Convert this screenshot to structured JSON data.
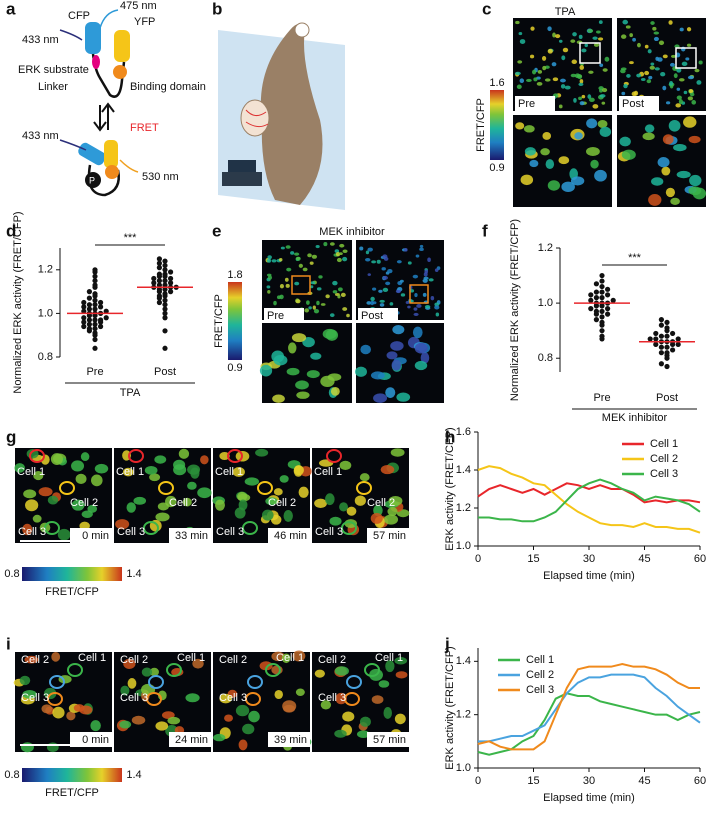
{
  "panel_letters": [
    "a",
    "b",
    "c",
    "d",
    "e",
    "f",
    "g",
    "h",
    "i",
    "j"
  ],
  "diagram": {
    "cfp": "CFP",
    "yfp": "YFP",
    "ex1": "433 nm",
    "em1": "475 nm",
    "substrate": "ERK substrate",
    "linker": "Linker",
    "binding": "Binding domain",
    "ex2": "433 nm",
    "fret": "FRET",
    "em2": "530 nm",
    "phospho": "P"
  },
  "panel_c": {
    "title": "TPA",
    "pre": "Pre",
    "post": "Post",
    "scale_max": "1.6",
    "scale_min": "0.9",
    "scale_label": "FRET/CFP"
  },
  "panel_e": {
    "title": "MEK inhibitor",
    "pre": "Pre",
    "post": "Post",
    "scale_max": "1.8",
    "scale_min": "0.9",
    "scale_label": "FRET/CFP"
  },
  "panel_g": {
    "cells": [
      "Cell 1",
      "Cell 2",
      "Cell 3"
    ],
    "times": [
      "0 min",
      "33 min",
      "46 min",
      "57 min"
    ],
    "scale_min": "0.8",
    "scale_max": "1.4",
    "scale_label": "FRET/CFP"
  },
  "panel_i": {
    "cells": [
      "Cell 1",
      "Cell 2",
      "Cell 3"
    ],
    "times": [
      "0 min",
      "24 min",
      "39 min",
      "57 min"
    ],
    "scale_min": "0.8",
    "scale_max": "1.4",
    "scale_label": "FRET/CFP"
  },
  "chart_data": [
    {
      "type": "strip",
      "ylabel": "Normalized ERK activity (FRET/CFP)",
      "xlabel": "TPA",
      "significance": "***",
      "categories": [
        "Pre",
        "Post"
      ],
      "color": "#111111",
      "mean_color": "#e8262b",
      "means": [
        1.0,
        1.12
      ],
      "values": [
        [
          0.84,
          0.88,
          0.9,
          0.91,
          0.92,
          0.93,
          0.93,
          0.94,
          0.94,
          0.95,
          0.95,
          0.96,
          0.96,
          0.97,
          0.97,
          0.97,
          0.98,
          0.98,
          0.99,
          0.99,
          1.0,
          1.0,
          1.0,
          1.01,
          1.01,
          1.02,
          1.02,
          1.03,
          1.03,
          1.04,
          1.04,
          1.05,
          1.05,
          1.06,
          1.07,
          1.08,
          1.09,
          1.1,
          1.12,
          1.13,
          1.15,
          1.17,
          1.19,
          1.2
        ],
        [
          0.84,
          0.92,
          0.98,
          1.0,
          1.02,
          1.04,
          1.05,
          1.06,
          1.07,
          1.08,
          1.08,
          1.09,
          1.1,
          1.1,
          1.11,
          1.11,
          1.12,
          1.12,
          1.12,
          1.13,
          1.13,
          1.14,
          1.14,
          1.15,
          1.15,
          1.16,
          1.16,
          1.17,
          1.17,
          1.18,
          1.18,
          1.19,
          1.2,
          1.21,
          1.22,
          1.23,
          1.24,
          1.25
        ]
      ],
      "ylim": [
        0.8,
        1.3
      ],
      "yticks": [
        {
          "value": 0.8,
          "label": "0.8"
        },
        {
          "value": 1.0,
          "label": "1.0"
        },
        {
          "value": 1.2,
          "label": "1.2"
        }
      ]
    },
    {
      "type": "strip",
      "ylabel": "Normalized ERK activity (FRET/CFP)",
      "xlabel": "MEK inhibitor",
      "significance": "***",
      "categories": [
        "Pre",
        "Post"
      ],
      "color": "#111111",
      "mean_color": "#e8262b",
      "means": [
        1.0,
        0.86
      ],
      "values": [
        [
          0.87,
          0.88,
          0.9,
          0.92,
          0.93,
          0.94,
          0.95,
          0.96,
          0.96,
          0.97,
          0.97,
          0.98,
          0.98,
          0.99,
          0.99,
          1.0,
          1.0,
          1.0,
          1.01,
          1.01,
          1.02,
          1.02,
          1.03,
          1.03,
          1.04,
          1.04,
          1.05,
          1.06,
          1.07,
          1.08,
          1.1
        ],
        [
          0.77,
          0.78,
          0.8,
          0.81,
          0.82,
          0.82,
          0.83,
          0.84,
          0.84,
          0.85,
          0.85,
          0.85,
          0.86,
          0.86,
          0.86,
          0.87,
          0.87,
          0.87,
          0.88,
          0.88,
          0.89,
          0.89,
          0.9,
          0.91,
          0.92,
          0.93,
          0.94
        ]
      ],
      "ylim": [
        0.75,
        1.2
      ],
      "yticks": [
        {
          "value": 0.8,
          "label": "0.8"
        },
        {
          "value": 1.0,
          "label": "1.0"
        },
        {
          "value": 1.2,
          "label": "1.2"
        }
      ]
    },
    {
      "type": "line",
      "ylabel": "ERK activity (FRET/CFP)",
      "xlabel": "Elapsed time (min)",
      "x": [
        0,
        3,
        6,
        9,
        12,
        15,
        18,
        21,
        24,
        27,
        30,
        33,
        36,
        39,
        42,
        45,
        48,
        51,
        54,
        57,
        60
      ],
      "series": [
        {
          "name": "Cell 1",
          "color": "#e8262b",
          "values": [
            1.26,
            1.3,
            1.32,
            1.3,
            1.28,
            1.3,
            1.27,
            1.3,
            1.33,
            1.32,
            1.3,
            1.32,
            1.3,
            1.3,
            1.27,
            1.23,
            1.24,
            1.23,
            1.24,
            1.24,
            1.23
          ]
        },
        {
          "name": "Cell 2",
          "color": "#f5c518",
          "values": [
            1.4,
            1.42,
            1.41,
            1.38,
            1.36,
            1.33,
            1.32,
            1.27,
            1.22,
            1.18,
            1.15,
            1.12,
            1.11,
            1.11,
            1.1,
            1.12,
            1.1,
            1.1,
            1.09,
            1.09,
            1.07
          ]
        },
        {
          "name": "Cell 3",
          "color": "#3bb54a",
          "values": [
            1.15,
            1.15,
            1.14,
            1.14,
            1.13,
            1.13,
            1.15,
            1.18,
            1.24,
            1.3,
            1.33,
            1.35,
            1.33,
            1.3,
            1.28,
            1.24,
            1.26,
            1.25,
            1.24,
            1.22,
            1.18
          ]
        }
      ],
      "xlim": [
        0,
        60
      ],
      "xticks": [
        0,
        15,
        30,
        45,
        60
      ],
      "ylim": [
        1.0,
        1.6
      ],
      "yticks": [
        {
          "value": 1.0,
          "label": "1.0"
        },
        {
          "value": 1.2,
          "label": "1.2"
        },
        {
          "value": 1.4,
          "label": "1.4"
        },
        {
          "value": 1.6,
          "label": "1.6"
        }
      ],
      "legend": "upper right"
    },
    {
      "type": "line",
      "ylabel": "ERK activity (FRET/CFP)",
      "xlabel": "Elapsed time (min)",
      "x": [
        0,
        3,
        6,
        9,
        12,
        15,
        18,
        21,
        24,
        27,
        30,
        33,
        36,
        39,
        42,
        45,
        48,
        51,
        54,
        57,
        60
      ],
      "series": [
        {
          "name": "Cell 1",
          "color": "#3bb54a",
          "values": [
            1.06,
            1.05,
            1.06,
            1.07,
            1.1,
            1.12,
            1.18,
            1.26,
            1.28,
            1.27,
            1.27,
            1.25,
            1.24,
            1.23,
            1.22,
            1.21,
            1.2,
            1.2,
            1.18,
            1.2,
            1.21
          ]
        },
        {
          "name": "Cell 2",
          "color": "#4aa3df",
          "values": [
            1.1,
            1.1,
            1.11,
            1.12,
            1.12,
            1.14,
            1.16,
            1.22,
            1.28,
            1.32,
            1.34,
            1.34,
            1.35,
            1.35,
            1.35,
            1.34,
            1.3,
            1.27,
            1.23,
            1.2,
            1.17
          ]
        },
        {
          "name": "Cell 3",
          "color": "#f08a1c",
          "values": [
            1.09,
            1.1,
            1.08,
            1.07,
            1.07,
            1.07,
            1.1,
            1.2,
            1.3,
            1.37,
            1.38,
            1.38,
            1.38,
            1.39,
            1.38,
            1.38,
            1.37,
            1.35,
            1.32,
            1.3,
            1.3
          ]
        }
      ],
      "xlim": [
        0,
        60
      ],
      "xticks": [
        0,
        15,
        30,
        45,
        60
      ],
      "ylim": [
        1.0,
        1.45
      ],
      "yticks": [
        {
          "value": 1.0,
          "label": "1.0"
        },
        {
          "value": 1.2,
          "label": "1.2"
        },
        {
          "value": 1.4,
          "label": "1.4"
        }
      ],
      "legend": "upper left"
    }
  ]
}
